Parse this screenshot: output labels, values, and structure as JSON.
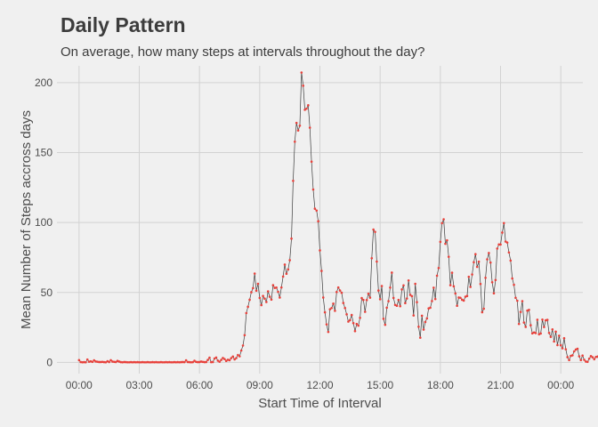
{
  "title": "Daily Pattern",
  "subtitle": "On average, how many steps at intervals throughout the day?",
  "colors": {
    "background": "#f0f0f0",
    "grid": "#d2d2d2",
    "line": "#3a3a3a",
    "points": "#e8413b",
    "text": "#3c3c3c"
  },
  "chart_data": {
    "type": "line",
    "xlabel": "Start Time of Interval",
    "ylabel": "Mean Number of Steps accross days",
    "x_unit": "hours since 00:00",
    "xlim": [
      -1.1,
      25.1
    ],
    "ylim": [
      -8,
      212
    ],
    "x_ticks": [
      0,
      3,
      6,
      9,
      12,
      15,
      18,
      21,
      24
    ],
    "x_tick_labels": [
      "00:00",
      "03:00",
      "06:00",
      "09:00",
      "12:00",
      "15:00",
      "18:00",
      "21:00",
      "00:00"
    ],
    "y_ticks": [
      0,
      50,
      100,
      150,
      200
    ],
    "y_tick_labels": [
      "0",
      "50",
      "100",
      "150",
      "200"
    ],
    "grid": true,
    "marker": "point",
    "interval_hours": 0.083333,
    "series": [
      {
        "values": [
          1.7,
          0.3,
          0.1,
          0.2,
          0.1,
          2.1,
          0.5,
          0.8,
          0.4,
          1.5,
          0.7,
          0.5,
          0.3,
          0.3,
          0.4,
          0.2,
          0.1,
          0.9,
          0.3,
          1.6,
          0.6,
          0.4,
          0.3,
          1.1,
          0.6,
          0.2,
          0.1,
          0.3,
          0.2,
          0.1,
          0.1,
          0.2,
          0.1,
          0.2,
          0.1,
          0.2,
          0.1,
          0.1,
          0.2,
          0.1,
          0.1,
          0.2,
          0.1,
          0.1,
          0.2,
          0.1,
          0.2,
          0.1,
          0.1,
          0.2,
          0.1,
          0.1,
          0.2,
          0.1,
          0.2,
          0.1,
          0.1,
          0.2,
          0.1,
          0.2,
          0.1,
          0.2,
          0.3,
          0.2,
          1.5,
          0.3,
          0.2,
          0.1,
          0.2,
          1.2,
          0.4,
          0.2,
          0.3,
          0.6,
          0.4,
          0.2,
          0.3,
          1.8,
          3.4,
          0.2,
          0.3,
          2.8,
          3.5,
          1.3,
          0.5,
          1.8,
          3.2,
          2.4,
          1.1,
          1.9,
          1.6,
          3.1,
          4.2,
          2.2,
          3.1,
          5.3,
          4.4,
          8.5,
          12.1,
          19.5,
          35.3,
          39.8,
          44.8,
          50.2,
          53.1,
          63.5,
          51.3,
          56.2,
          46.1,
          41.0,
          47.5,
          45.6,
          43.2,
          50.8,
          47.0,
          44.9,
          55.2,
          53.3,
          53.5,
          50.5,
          46.4,
          53.6,
          61.4,
          69.9,
          63.4,
          66.5,
          73.1,
          88.5,
          129.8,
          157.8,
          171.2,
          165.8,
          169.2,
          207.2,
          197.8,
          180.6,
          181.4,
          183.8,
          167.8,
          143.5,
          123.6,
          109.9,
          108.6,
          100.9,
          80.1,
          65.4,
          46.4,
          35.8,
          27.2,
          21.8,
          38.0,
          38.9,
          42.0,
          36.9,
          50.3,
          53.6,
          51.4,
          49.8,
          42.5,
          38.9,
          34.4,
          29.2,
          30.2,
          33.9,
          28.1,
          22.4,
          27.5,
          26.3,
          31.9,
          46.0,
          44.7,
          36.2,
          44.6,
          49.1,
          46.3,
          74.5,
          95.0,
          93.3,
          72.1,
          51.4,
          45.2,
          54.6,
          31.2,
          26.9,
          39.1,
          43.8,
          53.5,
          64.2,
          46.1,
          41.1,
          40.5,
          44.7,
          40.2,
          52.2,
          55.1,
          42.4,
          45.7,
          58.6,
          48.3,
          47.4,
          33.6,
          56.2,
          43.1,
          25.5,
          17.7,
          33.4,
          23.5,
          28.9,
          31.5,
          38.6,
          39.1,
          43.9,
          53.4,
          45.3,
          62.0,
          67.5,
          86.2,
          99.6,
          102.3,
          84.8,
          87.3,
          75.5,
          55.2,
          64.1,
          54.4,
          49.3,
          40.5,
          46.4,
          46.2,
          44.8,
          44.2,
          47.0,
          47.5,
          61.2,
          54.0,
          62.9,
          71.6,
          77.4,
          68.3,
          72.0,
          56.1,
          35.9,
          38.4,
          60.5,
          73.7,
          78.2,
          71.4,
          57.3,
          49.4,
          58.9,
          81.4,
          84.3,
          84.3,
          92.8,
          99.6,
          86.4,
          85.7,
          78.6,
          72.8,
          60.0,
          55.5,
          46.2,
          44.1,
          27.5,
          36.1,
          43.8,
          28.5,
          25.4,
          37.0,
          37.6,
          26.6,
          20.8,
          21.4,
          21.0,
          30.5,
          20.1,
          20.7,
          30.6,
          25.3,
          30.1,
          30.4,
          21.1,
          18.3,
          23.6,
          15.0,
          22.0,
          12.4,
          19.1,
          12.3,
          10.1,
          17.3,
          9.4,
          3.8,
          1.7,
          4.7,
          5.1,
          7.9,
          9.2,
          9.8,
          4.4,
          1.7,
          4.9,
          1.9,
          0.6,
          0.4,
          2.7,
          4.5,
          3.7,
          2.3,
          3.9,
          4.2,
          0.8,
          0.7,
          0.3,
          0.5,
          0.8,
          1.0,
          2.0,
          3.6,
          5.2,
          3.1,
          2.3,
          0.8,
          1.7,
          0.5,
          1.1,
          2.0,
          0.9,
          1.3,
          0.5,
          1.3,
          0.2,
          1.6,
          3.3,
          0.7,
          1.1
        ]
      }
    ]
  }
}
